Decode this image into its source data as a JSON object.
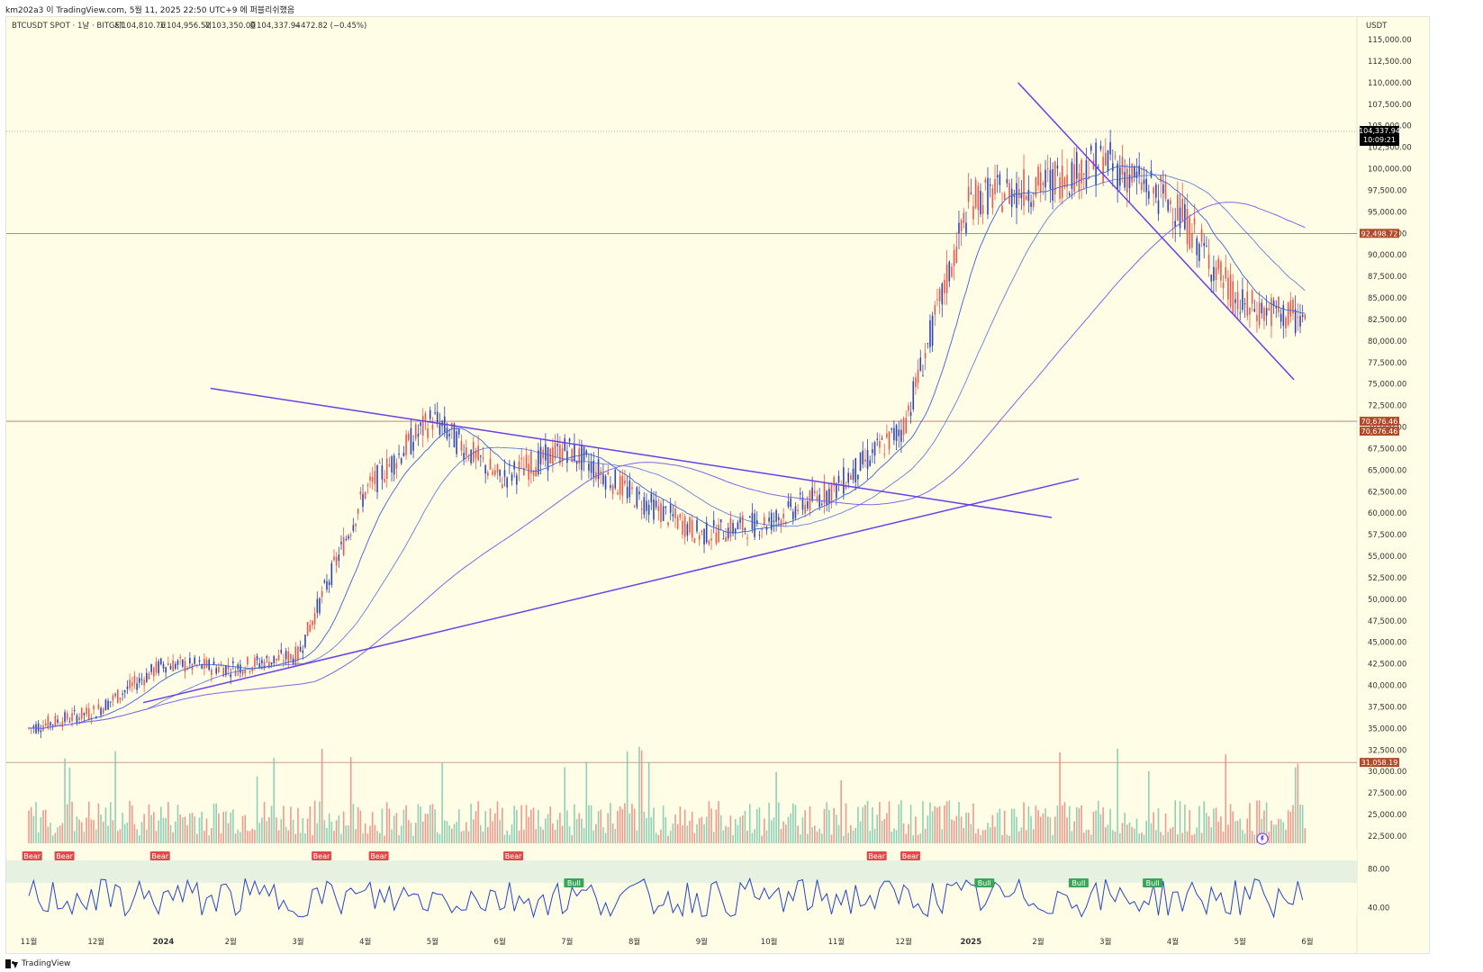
{
  "header": {
    "caption": "km202a3 이 TradingView.com, 5월 11, 2025 22:50 UTC+9 에 퍼블리쉬했음",
    "symbol": "BTCUSDT SPOT · 1날 · BITGET",
    "open_label": "시",
    "open": "104,810.76",
    "high_label": "고",
    "high": "104,956.52",
    "low_label": "저",
    "low": "103,350.00",
    "close_label": "종",
    "close": "104,337.94",
    "change": "−472.82 (−0.45%)"
  },
  "footer": {
    "brand": "TradingView"
  },
  "colors": {
    "background": "#fffde6",
    "up": "#e35b50",
    "down": "#2f45b5",
    "volume_up": "#e98980",
    "volume_down": "#7bc8b0",
    "ma_fast": "#3c63d6",
    "ma_slow": "#7f66e6",
    "trendline": "#6b3ee6",
    "level": "#8b4b3b",
    "price_tag": "#000000",
    "level_tag": "#b14a2a",
    "bull": "#3aa558",
    "bear": "#e14848"
  },
  "chart_data": {
    "type": "line",
    "title": "BTCUSDT SPOT · 1날 · BITGET",
    "currency_label": "USDT",
    "price_axis_ticks": [
      "115,000.00",
      "112,500.00",
      "110,000.00",
      "107,500.00",
      "105,000.00",
      "102,500.00",
      "100,000.00",
      "97,500.00",
      "95,000.00",
      "92,500.00",
      "90,000.00",
      "87,500.00",
      "85,000.00",
      "82,500.00",
      "80,000.00",
      "77,500.00",
      "75,000.00",
      "72,500.00",
      "70,000.00",
      "67,500.00",
      "65,000.00",
      "62,500.00",
      "60,000.00",
      "57,500.00",
      "55,000.00",
      "52,500.00",
      "50,000.00",
      "47,500.00",
      "45,000.00",
      "42,500.00",
      "40,000.00",
      "37,500.00",
      "35,000.00",
      "32,500.00",
      "30,000.00",
      "27,500.00",
      "25,000.00",
      "22,500.00"
    ],
    "time_axis_ticks": [
      "11월",
      "12월",
      "2024",
      "2월",
      "3월",
      "4월",
      "5월",
      "6월",
      "7월",
      "8월",
      "9월",
      "10월",
      "11월",
      "12월",
      "2025",
      "2월",
      "3월",
      "4월",
      "5월",
      "6월"
    ],
    "price_ylim": [
      22500,
      115000
    ],
    "x": [
      0,
      1,
      2,
      3,
      4,
      5,
      6,
      7,
      8,
      9,
      10,
      11,
      12,
      13,
      14,
      15,
      16,
      17,
      18,
      19
    ],
    "series": [
      {
        "name": "BTCUSDT",
        "values": [
          35000,
          37000,
          42500,
          42000,
          43500,
          62500,
          71000,
          64000,
          67500,
          62000,
          57500,
          59000,
          63000,
          70000,
          96500,
          98000,
          101000,
          96000,
          84000,
          82500
        ]
      }
    ],
    "price_line": {
      "value": 104337.94,
      "label": "104,337.94",
      "sublabel": "10:09:21"
    },
    "levels": [
      {
        "value": 92498.72,
        "label": "92,498.72"
      },
      {
        "value": 70676.46,
        "label": "70,676.46"
      },
      {
        "value": 70676.46,
        "label": "70,676.46"
      },
      {
        "value": 31058.19,
        "label": "31,058.19"
      }
    ],
    "rsi_ticks": [
      "80.00",
      "40.00"
    ],
    "signals": [
      {
        "label": "Bear",
        "x": 0.05
      },
      {
        "label": "Bear",
        "x": 0.53
      },
      {
        "label": "Bear",
        "x": 1.95
      },
      {
        "label": "Bear",
        "x": 4.35
      },
      {
        "label": "Bear",
        "x": 5.2
      },
      {
        "label": "Bear",
        "x": 7.2
      },
      {
        "label": "Bear",
        "x": 12.6
      },
      {
        "label": "Bear",
        "x": 13.1
      },
      {
        "label": "Bull",
        "x": 8.1
      },
      {
        "label": "Bull",
        "x": 14.2
      },
      {
        "label": "Bull",
        "x": 15.6
      },
      {
        "label": "Bull",
        "x": 16.7
      }
    ],
    "grid": false
  }
}
